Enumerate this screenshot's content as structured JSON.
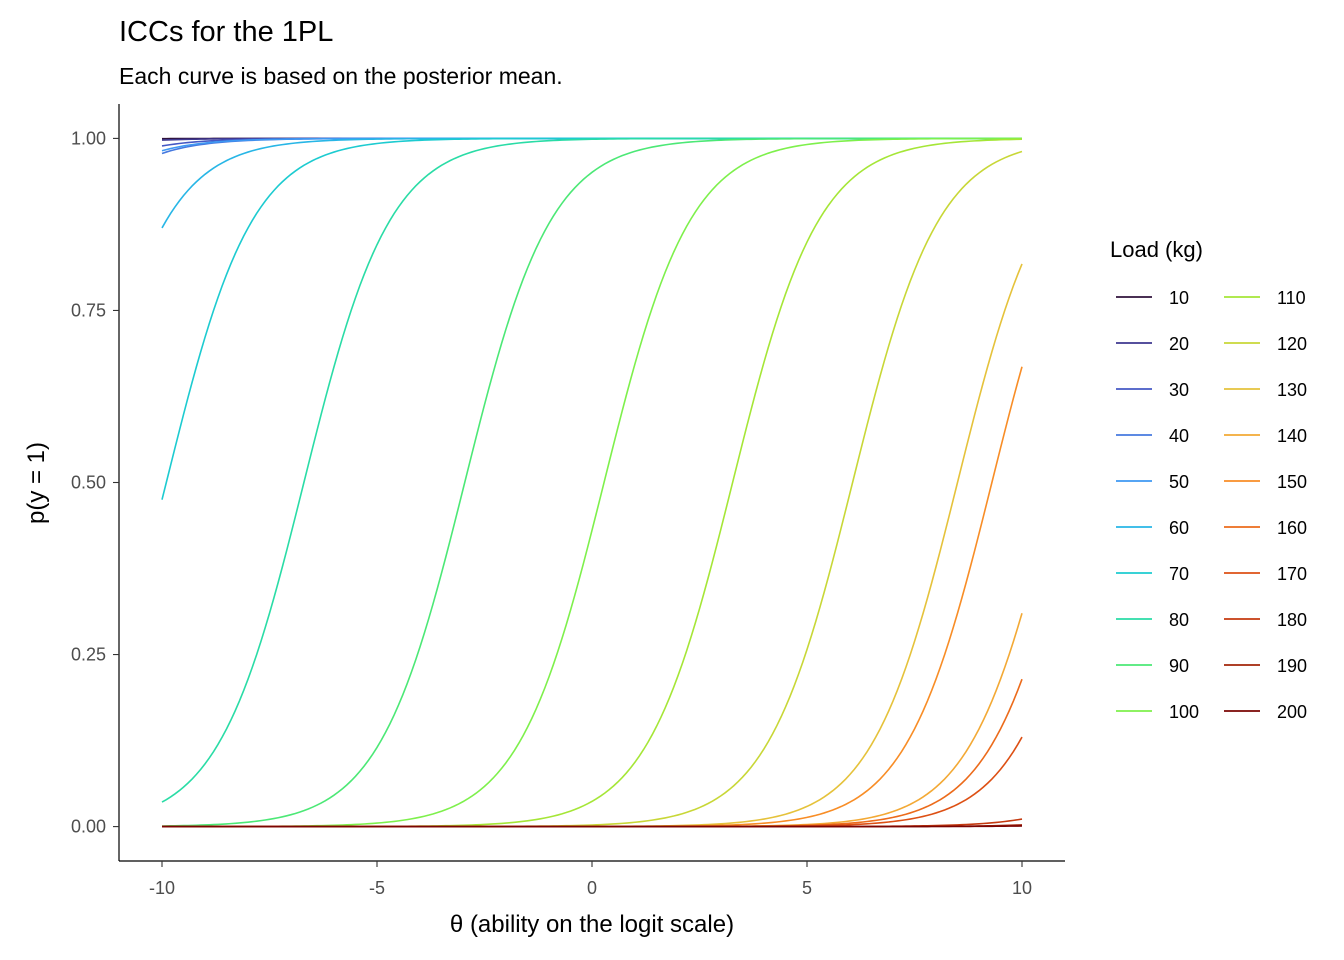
{
  "chart_data": {
    "type": "line",
    "title": "ICCs for the 1PL",
    "subtitle": "Each curve is based on the posterior mean.",
    "xlabel": "θ (ability on the logit scale)",
    "ylabel": "p(y = 1)",
    "xlim": [
      -11,
      11
    ],
    "ylim": [
      -0.05,
      1.05
    ],
    "x_ticks": [
      -10,
      -5,
      0,
      5,
      10
    ],
    "x_tick_labels": [
      "-10",
      "-5",
      "0",
      "5",
      "10"
    ],
    "y_ticks": [
      0,
      0.25,
      0.5,
      0.75,
      1
    ],
    "y_tick_labels": [
      "0.00",
      "0.25",
      "0.50",
      "0.75",
      "1.00"
    ],
    "x_range": [
      -10,
      10
    ],
    "grid": false,
    "legend": {
      "title": "Load (kg)",
      "position": "right",
      "columns": 2
    },
    "series": [
      {
        "name": "10",
        "color": "#30123b",
        "beta": -18
      },
      {
        "name": "20",
        "color": "#3e378f",
        "beta": -16
      },
      {
        "name": "30",
        "color": "#4458c4",
        "beta": -14.5
      },
      {
        "name": "40",
        "color": "#4679df",
        "beta": -13.8
      },
      {
        "name": "50",
        "color": "#3e98f3",
        "beta": -14
      },
      {
        "name": "60",
        "color": "#28b6e6",
        "beta": -11.9
      },
      {
        "name": "70",
        "color": "#1dcbd0",
        "beta": -9.9
      },
      {
        "name": "80",
        "color": "#2adca6",
        "beta": -6.7
      },
      {
        "name": "90",
        "color": "#4ce876",
        "beta": -2.96
      },
      {
        "name": "100",
        "color": "#7ef04c",
        "beta": 0.28
      },
      {
        "name": "110",
        "color": "#a5e637",
        "beta": 3.27
      },
      {
        "name": "120",
        "color": "#c8d737",
        "beta": 6.06
      },
      {
        "name": "130",
        "color": "#e5c23b",
        "beta": 8.5
      },
      {
        "name": "140",
        "color": "#f3a935",
        "beta": 10.8
      },
      {
        "name": "150",
        "color": "#f88d26",
        "beta": 9.3
      },
      {
        "name": "160",
        "color": "#ec6b1b",
        "beta": 11.3
      },
      {
        "name": "170",
        "color": "#dd5014",
        "beta": 11.9
      },
      {
        "name": "180",
        "color": "#c4390f",
        "beta": 14.5
      },
      {
        "name": "190",
        "color": "#a3240a",
        "beta": 16
      },
      {
        "name": "200",
        "color": "#7a0403",
        "beta": 17
      }
    ]
  }
}
